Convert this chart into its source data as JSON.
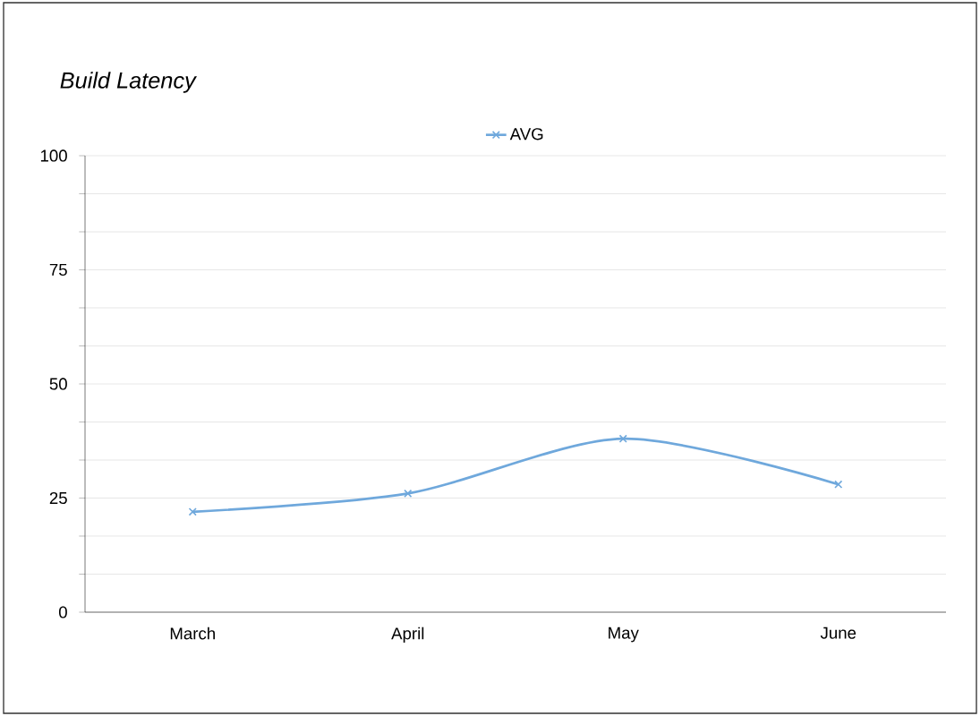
{
  "chart_data": {
    "type": "line",
    "title": "Build Latency",
    "categories": [
      "March",
      "April",
      "May",
      "June"
    ],
    "series": [
      {
        "name": "AVG",
        "color": "#6fa8dc",
        "values": [
          22,
          26,
          38,
          28
        ]
      }
    ],
    "ylim": [
      0,
      100
    ],
    "yticks": [
      0,
      {
        "value": 8.33,
        "label": null
      },
      {
        "value": 16.67,
        "label": null
      },
      25,
      {
        "value": 33.33,
        "label": null
      },
      {
        "value": 41.67,
        "label": null
      },
      50,
      {
        "value": 58.33,
        "label": null
      },
      {
        "value": 66.67,
        "label": null
      },
      75,
      {
        "value": 83.33,
        "label": null
      },
      {
        "value": 91.67,
        "label": null
      },
      100
    ],
    "grid": "y",
    "legend": "top",
    "marker": "cross",
    "line_style": "solid"
  }
}
